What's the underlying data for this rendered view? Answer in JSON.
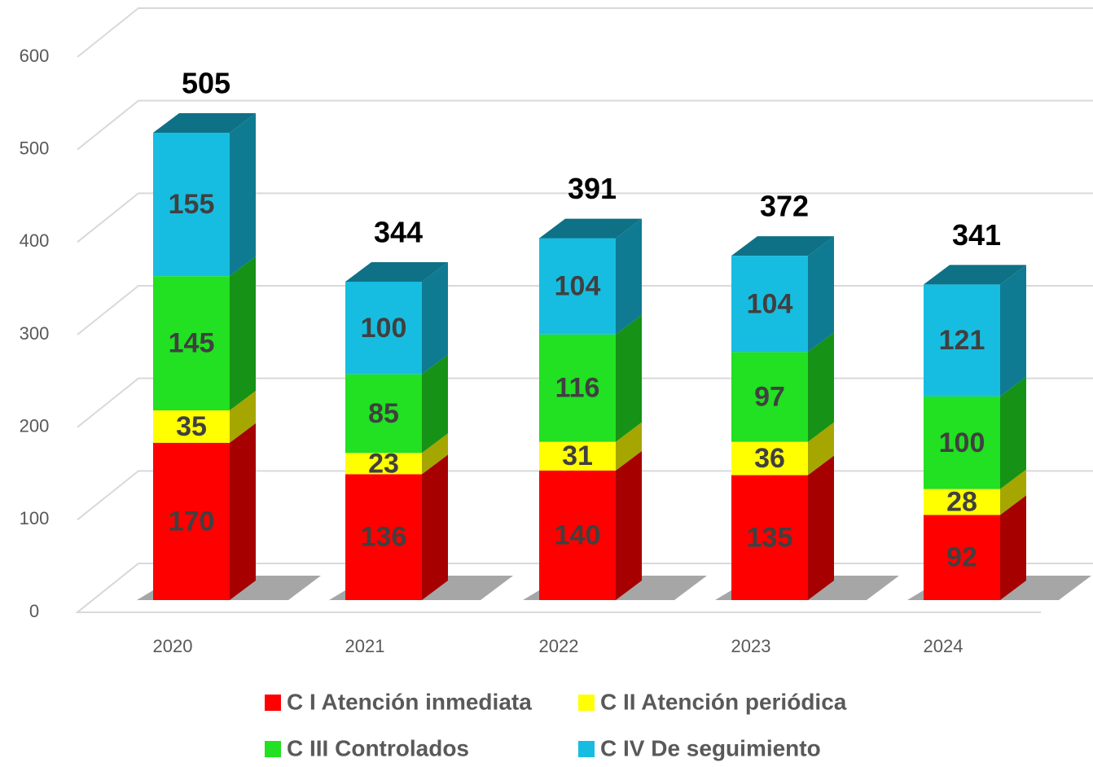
{
  "chart_data": {
    "type": "stacked_bar_3d",
    "categories": [
      "2020",
      "2021",
      "2022",
      "2023",
      "2024"
    ],
    "series": [
      {
        "name": "C I Atención inmediata",
        "color": "#ff0000",
        "values": [
          170,
          136,
          140,
          135,
          92
        ]
      },
      {
        "name": "C II Atención periódica",
        "color": "#ffff00",
        "values": [
          35,
          23,
          31,
          36,
          28
        ]
      },
      {
        "name": "C III Controlados",
        "color": "#22e022",
        "values": [
          145,
          85,
          116,
          97,
          100
        ]
      },
      {
        "name": "C IV De seguimiento",
        "color": "#17bde0",
        "values": [
          155,
          100,
          104,
          104,
          121
        ]
      }
    ],
    "totals": [
      505,
      344,
      391,
      372,
      341
    ],
    "ylim": [
      0,
      600
    ],
    "yticks": [
      0,
      100,
      200,
      300,
      400,
      500,
      600
    ],
    "grid": true
  }
}
